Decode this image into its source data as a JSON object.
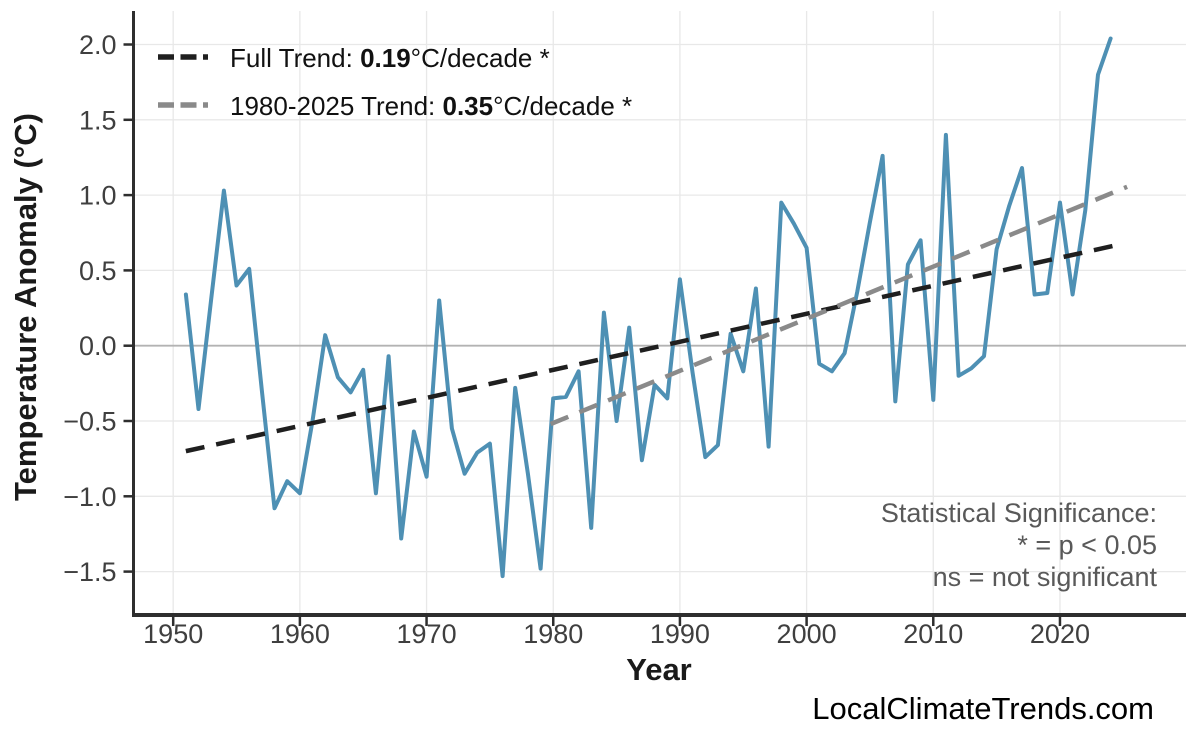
{
  "chart_data": {
    "type": "line",
    "xlabel": "Year",
    "ylabel": "Temperature Anomaly (°C)",
    "x_ticks": [
      1950,
      1960,
      1970,
      1980,
      1990,
      2000,
      2010,
      2020
    ],
    "x_tick_labels": [
      "1950",
      "1960",
      "1970",
      "1980",
      "1990",
      "2000",
      "2010",
      "2020"
    ],
    "y_ticks": [
      2.0,
      1.5,
      1.0,
      0.5,
      0.0,
      -0.5,
      -1.0,
      -1.5
    ],
    "y_tick_labels": [
      "2.0",
      "1.5",
      "1.0",
      "0.5",
      "0.0",
      "−0.5",
      "−1.0",
      "−1.5"
    ],
    "xlim": [
      1946.8,
      2029.9
    ],
    "ylim": [
      -1.78,
      2.22
    ],
    "grid": true,
    "legend_position": "top-left",
    "series": {
      "name": "annual-temperature-anomaly",
      "years": [
        1951,
        1952,
        1953,
        1954,
        1955,
        1956,
        1957,
        1958,
        1959,
        1960,
        1961,
        1962,
        1963,
        1964,
        1965,
        1966,
        1967,
        1968,
        1969,
        1970,
        1971,
        1972,
        1973,
        1974,
        1975,
        1976,
        1977,
        1978,
        1979,
        1980,
        1981,
        1982,
        1983,
        1984,
        1985,
        1986,
        1987,
        1988,
        1989,
        1990,
        1991,
        1992,
        1993,
        1994,
        1995,
        1996,
        1997,
        1998,
        1999,
        2000,
        2001,
        2002,
        2003,
        2004,
        2005,
        2006,
        2007,
        2008,
        2009,
        2010,
        2011,
        2012,
        2013,
        2014,
        2015,
        2016,
        2017,
        2018,
        2019,
        2020,
        2021,
        2022,
        2023,
        2024
      ],
      "values": [
        0.34,
        -0.42,
        0.31,
        1.03,
        0.4,
        0.51,
        -0.3,
        -1.08,
        -0.9,
        -0.98,
        -0.5,
        0.07,
        -0.21,
        -0.31,
        -0.16,
        -0.98,
        -0.07,
        -1.28,
        -0.57,
        -0.87,
        0.3,
        -0.55,
        -0.85,
        -0.71,
        -0.65,
        -1.53,
        -0.28,
        -0.85,
        -1.48,
        -0.35,
        -0.34,
        -0.17,
        -1.21,
        0.22,
        -0.5,
        0.12,
        -0.76,
        -0.26,
        -0.35,
        0.44,
        -0.18,
        -0.74,
        -0.66,
        0.08,
        -0.17,
        0.38,
        -0.67,
        0.95,
        0.81,
        0.65,
        -0.12,
        -0.17,
        -0.05,
        0.36,
        0.82,
        1.26,
        -0.37,
        0.54,
        0.7,
        -0.36,
        1.4,
        -0.2,
        -0.15,
        -0.07,
        0.64,
        0.93,
        1.18,
        0.34,
        0.35,
        0.95,
        0.34,
        0.9,
        1.8,
        2.04
      ]
    },
    "trends": [
      {
        "name": "full-trend",
        "legend_prefix": "Full Trend: ",
        "legend_value": "0.19",
        "legend_suffix": "°C/decade *",
        "slope_per_decade": 0.19,
        "year_start": 1951,
        "value_start": -0.7,
        "year_end": 2024.6,
        "value_end": 0.67,
        "color": "#1f1f1f"
      },
      {
        "name": "1980-2025-trend",
        "legend_prefix": "1980-2025 Trend: ",
        "legend_value": "0.35",
        "legend_suffix": "°C/decade *",
        "slope_per_decade": 0.35,
        "year_start": 1979.8,
        "value_start": -0.52,
        "year_end": 2025.3,
        "value_end": 1.055,
        "color": "#8a8a8a"
      }
    ],
    "annotation": {
      "line1": "Statistical Significance:",
      "line2": "* = p < 0.05",
      "line3": "ns = not significant"
    },
    "watermark": "LocalClimateTrends.com",
    "colors": {
      "series_line": "#4e90b4",
      "full_trend": "#1f1f1f",
      "secondary_trend": "#8a8a8a",
      "gridline": "#e8e8e8",
      "zero_line": "#b3b3b3",
      "spine": "#2e2e2e",
      "tick_label": "#3f3f3f",
      "annotation_text": "#595959",
      "background": "#ffffff"
    }
  }
}
